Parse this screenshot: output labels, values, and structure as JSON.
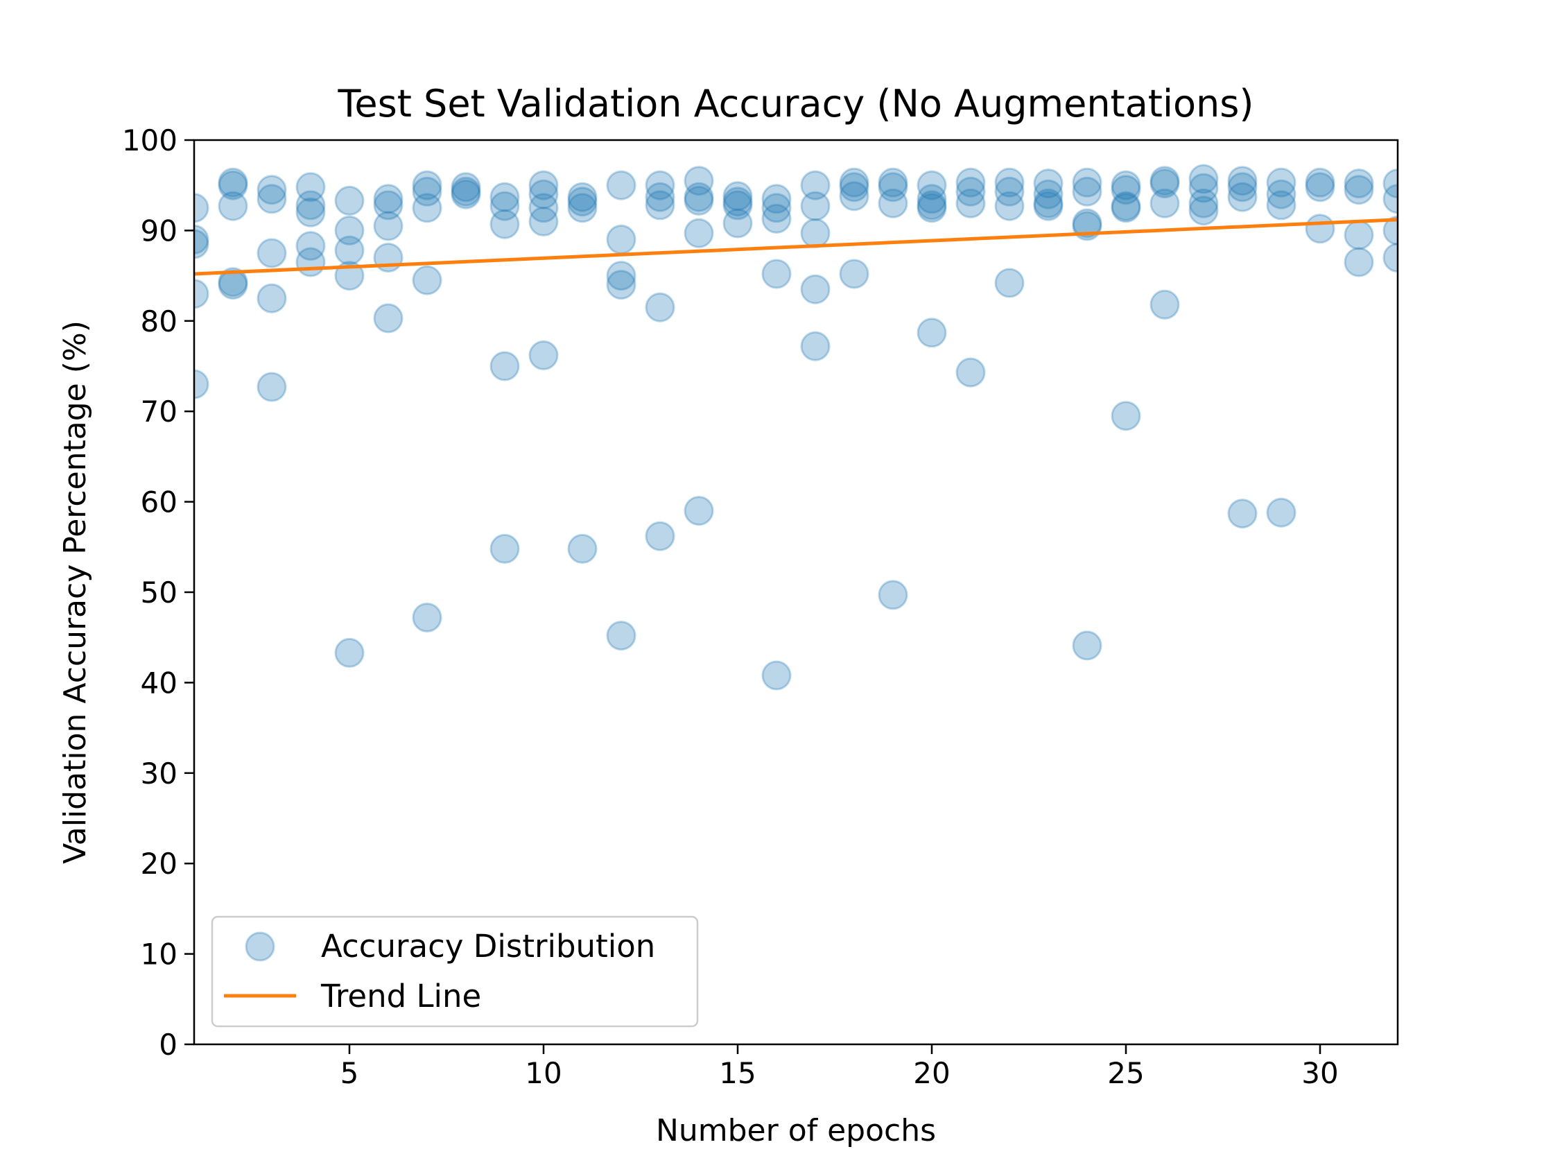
{
  "chart_data": {
    "type": "scatter",
    "title": "Test Set Validation Accuracy (No Augmentations)",
    "xlabel": "Number of epochs",
    "ylabel": "Validation Accuracy Percentage (%)",
    "xlim": [
      1,
      32
    ],
    "ylim": [
      0,
      100
    ],
    "xticks": [
      5,
      10,
      15,
      20,
      25,
      30
    ],
    "yticks": [
      0,
      10,
      20,
      30,
      40,
      50,
      60,
      70,
      80,
      90,
      100
    ],
    "grid": false,
    "legend_position": "lower-left",
    "legend": [
      "Accuracy Distribution",
      "Trend Line"
    ],
    "series": [
      {
        "name": "Accuracy Distribution",
        "kind": "scatter",
        "color": "#1f77b4",
        "points": [
          [
            1,
            92.5
          ],
          [
            1,
            89
          ],
          [
            1,
            88.5
          ],
          [
            1,
            83
          ],
          [
            1,
            73
          ],
          [
            2,
            95.3
          ],
          [
            2,
            95
          ],
          [
            2,
            92.7
          ],
          [
            2,
            84.3
          ],
          [
            2,
            84
          ],
          [
            3,
            94.5
          ],
          [
            3,
            93.5
          ],
          [
            3,
            87.5
          ],
          [
            3,
            82.5
          ],
          [
            3,
            72.7
          ],
          [
            4,
            94.8
          ],
          [
            4,
            92.8
          ],
          [
            4,
            92
          ],
          [
            4,
            88.3
          ],
          [
            4,
            86.5
          ],
          [
            5,
            93.3
          ],
          [
            5,
            90
          ],
          [
            5,
            87.8
          ],
          [
            5,
            85
          ],
          [
            5,
            43.3
          ],
          [
            6,
            93.5
          ],
          [
            6,
            92.8
          ],
          [
            6,
            90.5
          ],
          [
            6,
            87
          ],
          [
            6,
            80.3
          ],
          [
            7,
            95
          ],
          [
            7,
            94.3
          ],
          [
            7,
            92.5
          ],
          [
            7,
            84.5
          ],
          [
            7,
            47.2
          ],
          [
            8,
            94.8
          ],
          [
            8,
            94.3
          ],
          [
            8,
            94
          ],
          [
            9,
            93.7
          ],
          [
            9,
            92.7
          ],
          [
            9,
            90.7
          ],
          [
            9,
            75
          ],
          [
            9,
            54.8
          ],
          [
            10,
            95
          ],
          [
            10,
            94
          ],
          [
            10,
            92.5
          ],
          [
            10,
            91
          ],
          [
            10,
            76.2
          ],
          [
            11,
            93.7
          ],
          [
            11,
            93.2
          ],
          [
            11,
            92.5
          ],
          [
            11,
            54.8
          ],
          [
            12,
            95
          ],
          [
            12,
            89
          ],
          [
            12,
            85
          ],
          [
            12,
            84
          ],
          [
            12,
            45.2
          ],
          [
            13,
            95
          ],
          [
            13,
            93.7
          ],
          [
            13,
            92.8
          ],
          [
            13,
            81.5
          ],
          [
            13,
            56.2
          ],
          [
            14,
            95.5
          ],
          [
            14,
            93.7
          ],
          [
            14,
            93.3
          ],
          [
            14,
            89.7
          ],
          [
            14,
            59
          ],
          [
            15,
            93.8
          ],
          [
            15,
            93.2
          ],
          [
            15,
            92.8
          ],
          [
            15,
            90.8
          ],
          [
            16,
            93.5
          ],
          [
            16,
            92.5
          ],
          [
            16,
            91.3
          ],
          [
            16,
            85.2
          ],
          [
            16,
            40.8
          ],
          [
            17,
            95
          ],
          [
            17,
            92.7
          ],
          [
            17,
            89.7
          ],
          [
            17,
            83.5
          ],
          [
            17,
            77.2
          ],
          [
            18,
            95.3
          ],
          [
            18,
            94.8
          ],
          [
            18,
            93.8
          ],
          [
            18,
            85.2
          ],
          [
            19,
            95.3
          ],
          [
            19,
            94.8
          ],
          [
            19,
            93
          ],
          [
            19,
            49.7
          ],
          [
            20,
            95
          ],
          [
            20,
            93.5
          ],
          [
            20,
            92.8
          ],
          [
            20,
            92.5
          ],
          [
            20,
            78.7
          ],
          [
            21,
            95.3
          ],
          [
            21,
            94.3
          ],
          [
            21,
            93
          ],
          [
            21,
            74.3
          ],
          [
            22,
            95.3
          ],
          [
            22,
            94.3
          ],
          [
            22,
            92.7
          ],
          [
            22,
            84.2
          ],
          [
            23,
            95.2
          ],
          [
            23,
            94
          ],
          [
            23,
            93
          ],
          [
            23,
            92.7
          ],
          [
            24,
            95.3
          ],
          [
            24,
            94.3
          ],
          [
            24,
            90.8
          ],
          [
            24,
            90.5
          ],
          [
            24,
            44.1
          ],
          [
            25,
            95
          ],
          [
            25,
            94.5
          ],
          [
            25,
            92.7
          ],
          [
            25,
            92.5
          ],
          [
            25,
            69.5
          ],
          [
            26,
            95.5
          ],
          [
            26,
            95.2
          ],
          [
            26,
            93
          ],
          [
            26,
            81.8
          ],
          [
            27,
            95.7
          ],
          [
            27,
            94.7
          ],
          [
            27,
            93
          ],
          [
            27,
            92.2
          ],
          [
            28,
            95.5
          ],
          [
            28,
            94.8
          ],
          [
            28,
            93.7
          ],
          [
            28,
            58.7
          ],
          [
            29,
            95.3
          ],
          [
            29,
            94
          ],
          [
            29,
            92.8
          ],
          [
            29,
            58.8
          ],
          [
            30,
            95.3
          ],
          [
            30,
            94.8
          ],
          [
            30,
            90.2
          ],
          [
            31,
            95.2
          ],
          [
            31,
            94.5
          ],
          [
            31,
            89.5
          ],
          [
            31,
            86.5
          ],
          [
            32,
            95.2
          ],
          [
            32,
            93.5
          ],
          [
            32,
            90
          ],
          [
            32,
            87
          ]
        ]
      },
      {
        "name": "Trend Line",
        "kind": "line",
        "color": "#ff7f0e",
        "x": [
          1,
          32
        ],
        "y": [
          85.2,
          91.2
        ]
      }
    ]
  }
}
